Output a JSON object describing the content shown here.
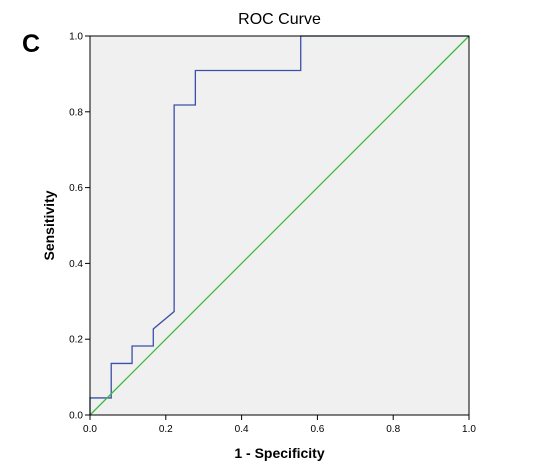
{
  "panel_label": "C",
  "chart_data": {
    "type": "line",
    "title": "ROC Curve",
    "xlabel": "1 - Specificity",
    "ylabel": "Sensitivity",
    "xlim": [
      0.0,
      1.0
    ],
    "ylim": [
      0.0,
      1.0
    ],
    "x_ticks": [
      "0.0",
      "0.2",
      "0.4",
      "0.6",
      "0.8",
      "1.0"
    ],
    "y_ticks": [
      "0.0",
      "0.2",
      "0.4",
      "0.6",
      "0.8",
      "1.0"
    ],
    "grid": false,
    "background": "#f0f0f0",
    "series": [
      {
        "color": "#3b4fa8",
        "x": [
          0.0,
          0.0,
          0.056,
          0.056,
          0.111,
          0.111,
          0.167,
          0.167,
          0.222,
          0.222,
          0.278,
          0.278,
          0.556,
          0.556,
          1.0
        ],
        "y": [
          0.0,
          0.045,
          0.045,
          0.136,
          0.136,
          0.182,
          0.182,
          0.227,
          0.273,
          0.818,
          0.818,
          0.909,
          0.909,
          1.0,
          1.0
        ]
      },
      {
        "color": "#3cb93c",
        "x": [
          0.0,
          1.0
        ],
        "y": [
          0.0,
          1.0
        ]
      }
    ]
  }
}
